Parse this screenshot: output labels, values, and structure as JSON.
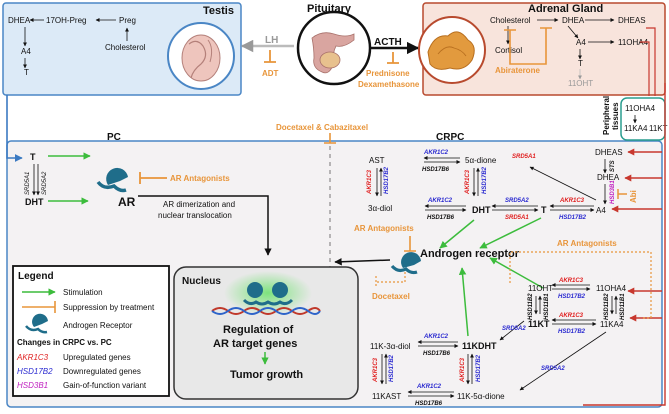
{
  "colors": {
    "testis_fill": "#dceaf7",
    "testis_stroke": "#4a86c5",
    "adrenal_fill": "#f8e4dc",
    "adrenal_stroke": "#b84a2e",
    "periph_stroke": "#2a9d8f",
    "main_fill": "#f4f2f3",
    "stim": "#3cbc3c",
    "suppress": "#e8953a",
    "red_line": "#c8382e",
    "blue_line": "#3b7ac2",
    "up_gene": "#e02020",
    "down_gene": "#2a2ad0",
    "gof_gene": "#c020c0",
    "receptor": "#1f6d8a"
  },
  "icons": [
    "testis-organ",
    "pituitary-organ",
    "adrenal-organ",
    "androgen-receptor",
    "nucleus-receptor-dimer",
    "dna-helix"
  ],
  "testis": {
    "title": "Testis",
    "dhea": "DHEA",
    "oh_preg": "17OH-Preg",
    "preg": "Preg",
    "a4": "A4",
    "t": "T",
    "cholesterol": "Cholesterol"
  },
  "pituitary": {
    "title": "Pituitary"
  },
  "lh": {
    "label": "LH",
    "adt": "ADT"
  },
  "acth": {
    "label": "ACTH",
    "drug1": "Prednisone",
    "drug2": "Dexamethasone"
  },
  "adrenal": {
    "title": "Adrenal Gland",
    "cholesterol": "Cholesterol",
    "dhea": "DHEA",
    "dheas": "DHEAS",
    "cortisol": "Cortisol",
    "a4": "A4",
    "oha4": "11OHA4",
    "t": "T",
    "oht": "11OHT",
    "abiraterone": "Abiraterone"
  },
  "peripheral": {
    "title_line1": "Peripheral",
    "title_line2": "tissues",
    "oha4": "11OHA4",
    "ka4": "11KA4",
    "kt": "11KT"
  },
  "docetaxel_caba": "Docetaxel & Cabazitaxel",
  "pc": {
    "title": "PC",
    "t": "T",
    "dht": "DHT",
    "srd5a1": "SRD5A1",
    "srd5a2": "SRD5A2",
    "ar": "AR",
    "ar_antagonists": "AR Antagonists",
    "dimer_line1": "AR dimerization and",
    "dimer_line2": "nuclear translocation"
  },
  "crpc": {
    "title": "CRPC",
    "ast": "AST",
    "dione": "5α-dione",
    "diol": "3α-diol",
    "dht": "DHT",
    "t": "T",
    "a4": "A4",
    "dhea": "DHEA",
    "dheas": "DHEAS",
    "sts": "STS",
    "abi": "Abi",
    "ar_antagonists_mid": "AR Antagonists",
    "androgen_receptor": "Androgen receptor",
    "docetaxel": "Docetaxel",
    "ar_antagonists_right": "AR Antagonists",
    "oht": "11OHT",
    "oha4": "11OHA4",
    "kt": "11KT",
    "ka4": "11KA4",
    "kdht": "11KDHT",
    "k3adiol": "11K-3α-diol",
    "kast": "11KAST",
    "k5adione": "11K-5α-dione"
  },
  "genes": {
    "akr1c2": "AKR1C2",
    "hsd17b6": "HSD17B6",
    "akr1c3": "AKR1C3",
    "hsd17b2": "HSD17B2",
    "srd5a1": "SRD5A1",
    "srd5a2": "SRD5A2",
    "hsd3b1": "HSD3B1",
    "hsd11b1": "HSD11B1",
    "hsd11b2": "HSD11B2"
  },
  "nucleus": {
    "title": "Nucleus",
    "reg_line1": "Regulation of",
    "reg_line2": "AR target genes",
    "growth": "Tumor growth"
  },
  "legend": {
    "title": "Legend",
    "stimulation": "Stimulation",
    "suppression": "Suppression by treatment",
    "receptor": "Androgen Receptor",
    "changes": "Changes in CRPC vs. PC",
    "up_gene": "AKR1C3",
    "up_text": "Upregulated genes",
    "down_gene": "HSD17B2",
    "down_text": "Downregulated genes",
    "gof_gene": "HSD3B1",
    "gof_text": "Gain-of-function variant"
  }
}
